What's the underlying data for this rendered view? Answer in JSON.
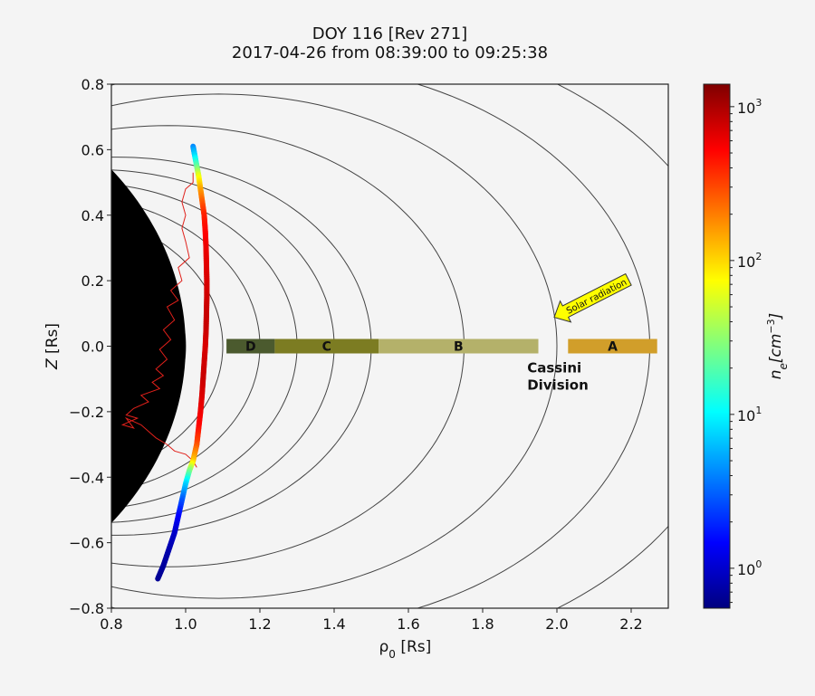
{
  "chart_data": {
    "type": "scatter",
    "title": "DOY 116 [Rev 271]",
    "subtitle": "2017-04-26 from 08:39:00 to 09:25:38",
    "xlabel": "ρ0 [Rs]",
    "ylabel": "Z [Rs]",
    "xlim": [
      0.8,
      2.3
    ],
    "ylim": [
      -0.8,
      0.8
    ],
    "xticks": [
      "0.8",
      "1.0",
      "1.2",
      "1.4",
      "1.6",
      "1.8",
      "2.0",
      "2.2"
    ],
    "yticks": [
      "−0.8",
      "−0.6",
      "−0.4",
      "−0.2",
      "0.0",
      "0.2",
      "0.4",
      "0.6",
      "0.8"
    ],
    "grid": false,
    "colorbar": {
      "label": "n_e [cm^-3]",
      "scale": "log",
      "range": [
        0.55,
        1400
      ],
      "tick_values": [
        1,
        10,
        100,
        1000
      ],
      "tick_labels": [
        "10",
        "10",
        "10",
        "10"
      ],
      "tick_exponents": [
        "0",
        "1",
        "2",
        "3"
      ]
    },
    "field_lines_equatorial_rs": [
      1.0,
      1.1,
      1.2,
      1.3,
      1.4,
      1.5,
      1.75,
      2.0,
      2.25,
      2.5
    ],
    "rings": [
      {
        "label": "D",
        "x0": 1.11,
        "x1": 1.24,
        "color": "#4b5a2e"
      },
      {
        "label": "C",
        "x0": 1.24,
        "x1": 1.52,
        "color": "#7c7c22"
      },
      {
        "label": "B",
        "x0": 1.52,
        "x1": 1.95,
        "color": "#b4b16a"
      },
      {
        "label": "A",
        "x0": 2.03,
        "x1": 2.27,
        "color": "#d19e2a"
      }
    ],
    "annotations": [
      {
        "text_lines": [
          "Cassini",
          "Division"
        ],
        "x": 1.92,
        "y": -0.08
      },
      {
        "text": "Solar radiation",
        "type": "arrow",
        "x": 2.0,
        "y": 0.08
      }
    ],
    "trajectory": [
      {
        "x": 1.02,
        "y": 0.61,
        "ne": 4
      },
      {
        "x": 1.025,
        "y": 0.58,
        "ne": 8
      },
      {
        "x": 1.03,
        "y": 0.55,
        "ne": 20
      },
      {
        "x": 1.035,
        "y": 0.52,
        "ne": 60
      },
      {
        "x": 1.04,
        "y": 0.48,
        "ne": 140
      },
      {
        "x": 1.045,
        "y": 0.44,
        "ne": 250
      },
      {
        "x": 1.05,
        "y": 0.4,
        "ne": 400
      },
      {
        "x": 1.053,
        "y": 0.35,
        "ne": 500
      },
      {
        "x": 1.055,
        "y": 0.3,
        "ne": 600
      },
      {
        "x": 1.056,
        "y": 0.25,
        "ne": 650
      },
      {
        "x": 1.057,
        "y": 0.2,
        "ne": 700
      },
      {
        "x": 1.057,
        "y": 0.15,
        "ne": 750
      },
      {
        "x": 1.056,
        "y": 0.1,
        "ne": 800
      },
      {
        "x": 1.055,
        "y": 0.05,
        "ne": 800
      },
      {
        "x": 1.053,
        "y": 0.0,
        "ne": 700
      },
      {
        "x": 1.05,
        "y": -0.05,
        "ne": 750
      },
      {
        "x": 1.047,
        "y": -0.1,
        "ne": 800
      },
      {
        "x": 1.044,
        "y": -0.15,
        "ne": 700
      },
      {
        "x": 1.04,
        "y": -0.2,
        "ne": 600
      },
      {
        "x": 1.035,
        "y": -0.25,
        "ne": 500
      },
      {
        "x": 1.03,
        "y": -0.3,
        "ne": 300
      },
      {
        "x": 1.02,
        "y": -0.35,
        "ne": 120
      },
      {
        "x": 1.01,
        "y": -0.38,
        "ne": 30
      },
      {
        "x": 1.0,
        "y": -0.42,
        "ne": 8
      },
      {
        "x": 0.99,
        "y": -0.47,
        "ne": 3
      },
      {
        "x": 0.98,
        "y": -0.52,
        "ne": 1.5
      },
      {
        "x": 0.97,
        "y": -0.57,
        "ne": 1
      },
      {
        "x": 0.955,
        "y": -0.62,
        "ne": 0.8
      },
      {
        "x": 0.94,
        "y": -0.67,
        "ne": 0.7
      },
      {
        "x": 0.925,
        "y": -0.71,
        "ne": 0.65
      }
    ],
    "density_profile_line": {
      "color": "#e0201a",
      "x": [
        1.02,
        1.02,
        1.0,
        0.99,
        1.0,
        0.99,
        1.0,
        1.01,
        0.98,
        0.99,
        0.96,
        0.98,
        0.95,
        0.97,
        0.94,
        0.96,
        0.93,
        0.95,
        0.92,
        0.94,
        0.91,
        0.93,
        0.88,
        0.9,
        0.86,
        0.84,
        0.87,
        0.85,
        0.83,
        0.86,
        0.84,
        0.88,
        0.9,
        0.92,
        0.95,
        0.97,
        1.0,
        1.02,
        1.03
      ],
      "y": [
        0.53,
        0.5,
        0.48,
        0.44,
        0.4,
        0.36,
        0.32,
        0.27,
        0.24,
        0.2,
        0.17,
        0.14,
        0.12,
        0.08,
        0.05,
        0.02,
        -0.01,
        -0.04,
        -0.07,
        -0.09,
        -0.11,
        -0.13,
        -0.15,
        -0.17,
        -0.19,
        -0.21,
        -0.22,
        -0.23,
        -0.24,
        -0.25,
        -0.22,
        -0.24,
        -0.26,
        -0.28,
        -0.3,
        -0.32,
        -0.33,
        -0.35,
        -0.37
      ]
    }
  }
}
